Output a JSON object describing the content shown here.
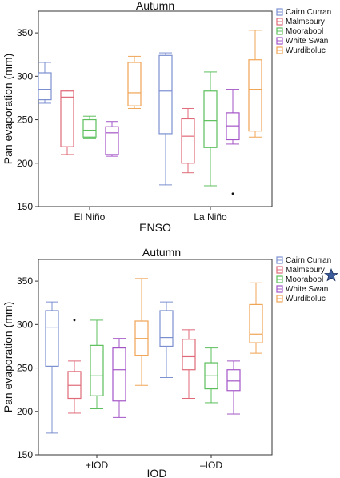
{
  "chart_data": [
    {
      "type": "box",
      "title": "Autumn",
      "xlabel": "ENSO",
      "ylabel": "Pan evaporation (mm)",
      "ylim": [
        150,
        375
      ],
      "yticks": [
        150,
        200,
        250,
        300,
        350
      ],
      "categories": [
        "El Niño",
        "La Niño"
      ],
      "legend_position": "top-right",
      "series": [
        {
          "name": "Cairn Curran",
          "color": "#7b8fd0",
          "boxes": [
            {
              "min": 269,
              "q1": 273,
              "median": 285,
              "q3": 304,
              "max": 316,
              "outliers": []
            },
            {
              "min": 175,
              "q1": 234,
              "median": 283,
              "q3": 324,
              "max": 327,
              "outliers": []
            }
          ]
        },
        {
          "name": "Malmsbury",
          "color": "#e06a78",
          "boxes": [
            {
              "min": 210,
              "q1": 219,
              "median": 276,
              "q3": 283,
              "max": 284,
              "outliers": []
            },
            {
              "min": 189,
              "q1": 200,
              "median": 231,
              "q3": 251,
              "max": 263,
              "outliers": []
            }
          ]
        },
        {
          "name": "Moorabool",
          "color": "#5cbf5c",
          "boxes": [
            {
              "min": 229,
              "q1": 230,
              "median": 238,
              "q3": 250,
              "max": 254,
              "outliers": []
            },
            {
              "min": 174,
              "q1": 218,
              "median": 249,
              "q3": 283,
              "max": 305,
              "outliers": []
            }
          ]
        },
        {
          "name": "White Swan",
          "color": "#a455c7",
          "boxes": [
            {
              "min": 208,
              "q1": 210,
              "median": 235,
              "q3": 242,
              "max": 248,
              "outliers": []
            },
            {
              "min": 222,
              "q1": 227,
              "median": 243,
              "q3": 258,
              "max": 285,
              "outliers": [
                165
              ]
            }
          ]
        },
        {
          "name": "Wurdiboluc",
          "color": "#f0a455",
          "boxes": [
            {
              "min": 263,
              "q1": 266,
              "median": 281,
              "q3": 316,
              "max": 323,
              "outliers": []
            },
            {
              "min": 230,
              "q1": 237,
              "median": 285,
              "q3": 319,
              "max": 353,
              "outliers": []
            }
          ]
        }
      ]
    },
    {
      "type": "box",
      "title": "Autumn",
      "xlabel": "IOD",
      "ylabel": "Pan evaporation (mm)",
      "ylim": [
        150,
        375
      ],
      "yticks": [
        150,
        200,
        250,
        300,
        350
      ],
      "categories": [
        "+IOD",
        "–IOD"
      ],
      "legend_position": "top-right",
      "series": [
        {
          "name": "Cairn Curran",
          "color": "#7b8fd0",
          "boxes": [
            {
              "min": 175,
              "q1": 252,
              "median": 297,
              "q3": 316,
              "max": 326,
              "outliers": []
            },
            {
              "min": 239,
              "q1": 275,
              "median": 285,
              "q3": 316,
              "max": 326,
              "outliers": []
            }
          ]
        },
        {
          "name": "Malmsbury",
          "color": "#e06a78",
          "boxes": [
            {
              "min": 198,
              "q1": 215,
              "median": 230,
              "q3": 246,
              "max": 258,
              "outliers": [
                305
              ]
            },
            {
              "min": 215,
              "q1": 248,
              "median": 263,
              "q3": 283,
              "max": 294,
              "outliers": []
            }
          ]
        },
        {
          "name": "Moorabool",
          "color": "#5cbf5c",
          "boxes": [
            {
              "min": 203,
              "q1": 218,
              "median": 241,
              "q3": 276,
              "max": 305,
              "outliers": []
            },
            {
              "min": 210,
              "q1": 226,
              "median": 241,
              "q3": 256,
              "max": 273,
              "outliers": []
            }
          ]
        },
        {
          "name": "White Swan",
          "color": "#a455c7",
          "boxes": [
            {
              "min": 193,
              "q1": 212,
              "median": 248,
              "q3": 273,
              "max": 284,
              "outliers": []
            },
            {
              "min": 197,
              "q1": 224,
              "median": 235,
              "q3": 248,
              "max": 258,
              "outliers": []
            }
          ]
        },
        {
          "name": "Wurdiboluc",
          "color": "#f0a455",
          "boxes": [
            {
              "min": 230,
              "q1": 264,
              "median": 284,
              "q3": 304,
              "max": 353,
              "outliers": []
            },
            {
              "min": 267,
              "q1": 279,
              "median": 289,
              "q3": 323,
              "max": 348,
              "outliers": []
            }
          ]
        }
      ]
    }
  ],
  "decoration": {
    "star_icon_color": "#3b5b9a"
  }
}
